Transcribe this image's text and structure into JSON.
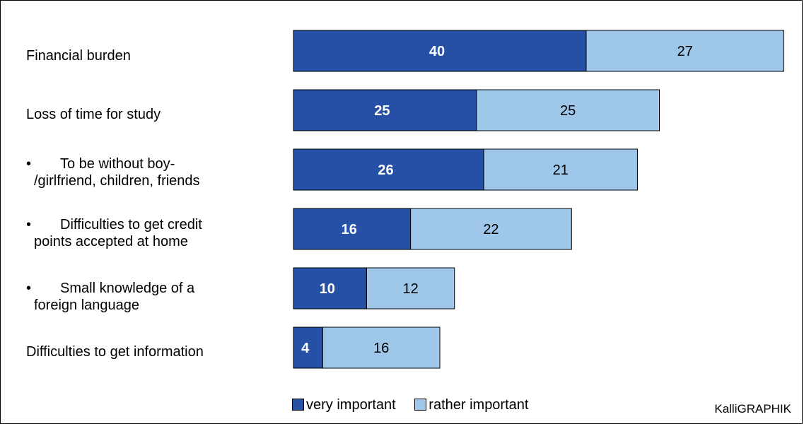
{
  "chart_data": {
    "type": "bar",
    "orientation": "horizontal",
    "stacked": true,
    "categories": [
      "Financial burden",
      "Loss of time for study",
      "To be without boy-/girlfriend, children, friends",
      "Difficulties to get credit points accepted at home",
      "Small knowledge of a foreign language",
      "Difficulties to get information"
    ],
    "category_display": [
      {
        "bullet": "",
        "line1": "Financial burden",
        "line2": ""
      },
      {
        "bullet": "",
        "line1": "Loss of time for study",
        "line2": ""
      },
      {
        "bullet": "•",
        "line1": "To be without boy-",
        "line2": "/girlfriend, children, friends"
      },
      {
        "bullet": "•",
        "line1": "Difficulties to get credit",
        "line2": "points accepted at home"
      },
      {
        "bullet": "•",
        "line1": "Small knowledge of a",
        "line2": "foreign language"
      },
      {
        "bullet": "",
        "line1": "Difficulties to get information",
        "line2": ""
      }
    ],
    "series": [
      {
        "name": "very important",
        "values": [
          40,
          25,
          26,
          16,
          10,
          4
        ],
        "color": "#2550a6"
      },
      {
        "name": "rather important",
        "values": [
          27,
          25,
          21,
          22,
          12,
          16
        ],
        "color": "#9ec7ea"
      }
    ],
    "xlim": [
      0,
      100
    ],
    "grid": false,
    "legend_position": "bottom",
    "title": "",
    "xlabel": "",
    "ylabel": ""
  },
  "credit": "KalliGRAPHIK"
}
